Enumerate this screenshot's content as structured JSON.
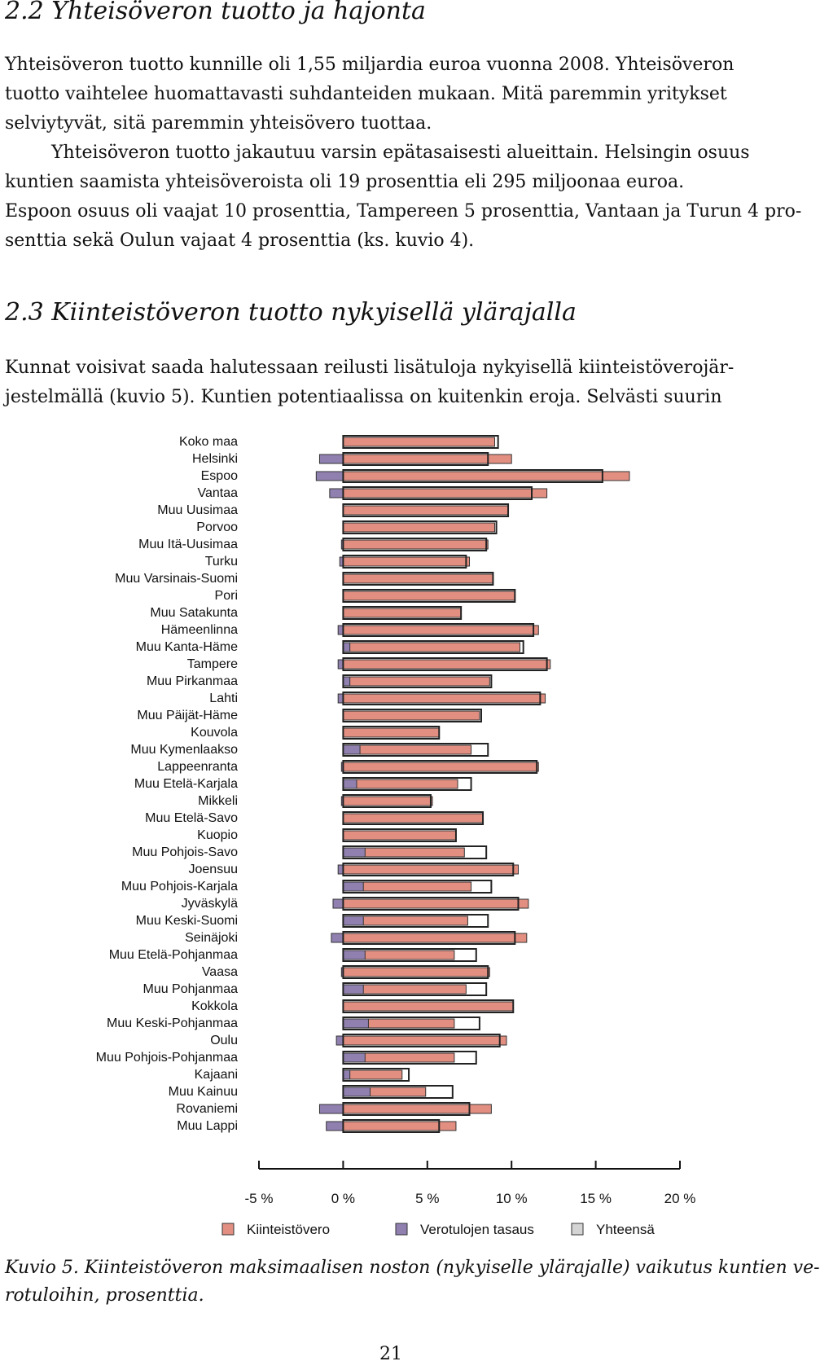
{
  "section_22": {
    "heading": "2.2 Yhteisöveron tuotto ja hajonta",
    "lines": [
      "Yhteisöveron tuotto kunnille oli 1,55 miljardia euroa vuonna 2008. Yhteisöveron",
      "tuotto vaihtelee huomattavasti suhdanteiden mukaan. Mitä paremmin yritykset",
      "selviytyvät, sitä paremmin yhteisövero tuottaa.",
      "Yhteisöveron tuotto jakautuu varsin epätasaisesti alueittain. Helsingin osuus",
      "kuntien saamista yhteisöveroista oli 19 prosenttia eli 295 miljoonaa euroa.",
      "Espoon osuus oli vaajat 10 prosenttia, Tampereen 5 prosenttia, Vantaan ja Turun 4 pro-",
      "senttia sekä Oulun vajaat 4 prosenttia (ks. kuvio 4)."
    ]
  },
  "section_23": {
    "heading": "2.3 Kiinteistöveron tuotto nykyisellä ylärajalla",
    "lines": [
      "Kunnat voisivat saada halutessaan reilusti lisätuloja nykyisellä kiinteistöverojär-",
      "jestelmällä (kuvio 5). Kuntien potentiaalissa on kuitenkin eroja. Selvästi suurin"
    ]
  },
  "chart_data": {
    "type": "bar",
    "orientation": "horizontal",
    "categories": [
      "Koko maa",
      "Helsinki",
      "Espoo",
      "Vantaa",
      "Muu Uusimaa",
      "Porvoo",
      "Muu Itä-Uusimaa",
      "Turku",
      "Muu Varsinais-Suomi",
      "Pori",
      "Muu Satakunta",
      "Hämeenlinna",
      "Muu Kanta-Häme",
      "Tampere",
      "Muu Pirkanmaa",
      "Lahti",
      "Muu Päijät-Häme",
      "Kouvola",
      "Muu Kymenlaakso",
      "Lappeenranta",
      "Muu Etelä-Karjala",
      "Mikkeli",
      "Muu Etelä-Savo",
      "Kuopio",
      "Muu Pohjois-Savo",
      "Joensuu",
      "Muu Pohjois-Karjala",
      "Jyväskylä",
      "Muu Keski-Suomi",
      "Seinäjoki",
      "Muu Etelä-Pohjanmaa",
      "Vaasa",
      "Muu Pohjanmaa",
      "Kokkola",
      "Muu Keski-Pohjanmaa",
      "Oulu",
      "Muu Pohjois-Pohjanmaa",
      "Kajaani",
      "Muu Kainuu",
      "Rovaniemi",
      "Muu Lappi"
    ],
    "series": [
      {
        "name": "Kiinteistövero",
        "color": "#e28f82",
        "values": [
          9.0,
          10.0,
          17.0,
          12.1,
          9.8,
          9.0,
          8.6,
          7.5,
          8.9,
          10.2,
          7.0,
          11.6,
          10.5,
          12.3,
          8.7,
          12.0,
          8.1,
          5.7,
          7.6,
          11.6,
          6.8,
          5.3,
          8.3,
          6.7,
          7.2,
          10.4,
          7.6,
          11.0,
          7.4,
          10.9,
          6.6,
          8.7,
          7.3,
          10.1,
          6.6,
          9.7,
          6.6,
          3.5,
          4.9,
          8.8,
          6.7
        ]
      },
      {
        "name": "Verotulojen tasaus",
        "color": "#9080b0",
        "values": [
          0,
          -1.4,
          -1.6,
          -0.8,
          0,
          0,
          -0.1,
          -0.2,
          0,
          0,
          0,
          -0.3,
          0.4,
          -0.3,
          0.4,
          -0.3,
          0,
          0,
          1.0,
          -0.1,
          0.8,
          -0.1,
          0,
          0,
          1.3,
          -0.3,
          1.2,
          -0.6,
          1.2,
          -0.7,
          1.3,
          -0.1,
          1.2,
          0,
          1.5,
          -0.4,
          1.3,
          0.4,
          1.6,
          -1.4,
          -1.0
        ]
      },
      {
        "name": "Yhteensä",
        "color": "#d4d4d4",
        "values": [
          9.2,
          8.6,
          15.4,
          11.2,
          9.8,
          9.1,
          8.5,
          7.3,
          8.9,
          10.2,
          7.0,
          11.3,
          10.7,
          12.1,
          8.8,
          11.7,
          8.2,
          5.7,
          8.6,
          11.5,
          7.6,
          5.2,
          8.3,
          6.7,
          8.5,
          10.1,
          8.8,
          10.4,
          8.6,
          10.2,
          7.9,
          8.6,
          8.5,
          10.1,
          8.1,
          9.3,
          7.9,
          3.9,
          6.5,
          7.5,
          5.7
        ]
      }
    ],
    "xticks": [
      "-5 %",
      "0 %",
      "5 %",
      "10 %",
      "15 %",
      "20 %"
    ],
    "xlim": [
      -5,
      20
    ],
    "legend": [
      "Kiinteistövero",
      "Verotulojen tasaus",
      "Yhteensä"
    ],
    "legend_position": "bottom"
  },
  "caption": {
    "lines": [
      "Kuvio 5. Kiinteistöveron maksimaalisen noston (nykyiselle ylärajalle) vaikutus kuntien ve-",
      "rotuloihin, prosenttia."
    ]
  },
  "page_number": "21"
}
